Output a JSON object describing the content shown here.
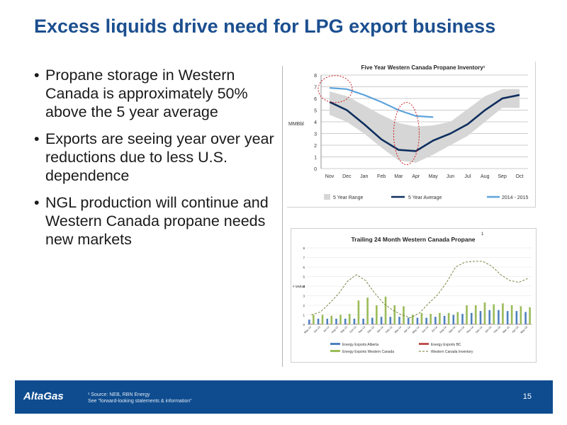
{
  "slide": {
    "title": "Excess liquids drive need for LPG export business",
    "bullets": [
      "Propane storage in Western Canada is approximately 50% above the 5 year average",
      "Exports are seeing year over year reductions due to less U.S. dependence",
      "NGL production will continue and Western Canada propane needs new markets"
    ],
    "footer": {
      "logo": "AltaGas",
      "source": "¹ Source: NEB, RBN Energy",
      "disclaimer": "See \"forward-looking statements & information\"",
      "page": "15"
    },
    "colors": {
      "title": "#1b4f8f",
      "footer": "#0e4c8f"
    }
  },
  "chart_data": [
    {
      "type": "area",
      "title": "Five Year Western Canada Propane Inventory¹",
      "ylabel": "MMBbl",
      "ylim": [
        0,
        8
      ],
      "yticks": [
        "0",
        "1",
        "2",
        "3",
        "4",
        "5",
        "6",
        "7",
        "8"
      ],
      "categories": [
        "Nov",
        "Dec",
        "Jan",
        "Feb",
        "Mar",
        "Apr",
        "May",
        "Jun",
        "Jul",
        "Aug",
        "Sep",
        "Oct"
      ],
      "range_low": [
        4.6,
        4.0,
        3.0,
        1.8,
        0.7,
        0.5,
        1.2,
        2.0,
        2.8,
        4.0,
        5.2,
        5.2
      ],
      "range_high": [
        6.6,
        6.2,
        5.4,
        4.6,
        3.9,
        3.6,
        3.7,
        4.0,
        5.1,
        6.2,
        6.8,
        6.8
      ],
      "series": [
        {
          "name": "5 Year Average",
          "color": "#0e2f5e",
          "values": [
            5.7,
            5.0,
            3.8,
            2.5,
            1.6,
            1.5,
            2.4,
            3.0,
            3.8,
            5.0,
            6.0,
            6.3
          ]
        },
        {
          "name": "2014 - 2015",
          "color": "#5da4dc",
          "values": [
            6.9,
            6.8,
            6.3,
            5.7,
            5.0,
            4.5,
            4.4,
            null,
            null,
            null,
            null,
            null
          ]
        }
      ],
      "legend": [
        "5 Year Range",
        "5 Year Average",
        "2014 - 2015"
      ],
      "legend_position": "bottom",
      "range_color": "#d6d6d6",
      "grid": true
    },
    {
      "type": "bar",
      "title": "Trailing 24 Month Western Canada Propane",
      "title_note": "1",
      "ylabel": "# MMbbl",
      "ylim": [
        0,
        8
      ],
      "yticks": [
        "0",
        "1",
        "2",
        "3",
        "4",
        "5",
        "6",
        "7",
        "8"
      ],
      "categories": [
        "May-13",
        "Jun-13",
        "Jul-13",
        "Aug-13",
        "Sep-13",
        "Oct-13",
        "Nov-13",
        "Dec-13",
        "Jan-14",
        "Feb-14",
        "Mar-14",
        "Apr-14",
        "May-14",
        "Jun-14",
        "Jul-14",
        "Aug-14",
        "Sep-14",
        "Oct-14",
        "Nov-14",
        "Dec-14",
        "Jan-15",
        "Feb-15",
        "Mar-15",
        "Apr-15",
        "May-15"
      ],
      "series": [
        {
          "name": "Energy Exports Alberta",
          "kind": "bar",
          "color": "#4f81bd",
          "values": [
            0.5,
            0.6,
            0.6,
            0.6,
            0.6,
            0.6,
            0.6,
            0.7,
            0.8,
            0.8,
            0.8,
            0.7,
            0.7,
            0.7,
            0.8,
            0.9,
            1.0,
            1.1,
            1.2,
            1.4,
            1.5,
            1.5,
            1.4,
            1.4,
            1.3
          ]
        },
        {
          "name": "Energy Exports BC",
          "kind": "bar",
          "color": "#c0504d",
          "values": [
            0.05,
            0.05,
            0.05,
            0.05,
            0.05,
            0.05,
            0.05,
            0.05,
            0.05,
            0.05,
            0.05,
            0.05,
            0.05,
            0.05,
            0.05,
            0.05,
            0.05,
            0.05,
            0.05,
            0.05,
            0.05,
            0.05,
            0.05,
            0.05,
            0.05
          ]
        },
        {
          "name": "Energy Exports Western Canada",
          "kind": "bar",
          "color": "#9bbb59",
          "values": [
            1.0,
            1.0,
            0.9,
            1.0,
            1.1,
            2.5,
            2.8,
            2.0,
            2.9,
            2.0,
            1.9,
            1.0,
            1.2,
            1.1,
            1.2,
            1.2,
            1.3,
            2.0,
            2.0,
            2.3,
            2.1,
            2.2,
            2.0,
            1.9,
            1.8
          ]
        },
        {
          "name": "Western Canada Inventory",
          "kind": "line",
          "color": "#6b7a30",
          "values": [
            1.0,
            1.3,
            2.2,
            3.2,
            4.5,
            5.2,
            4.6,
            3.3,
            2.2,
            1.5,
            1.0,
            0.7,
            1.2,
            2.2,
            3.1,
            4.4,
            6.0,
            6.5,
            6.6,
            6.6,
            6.1,
            5.2,
            4.6,
            4.4,
            4.8
          ]
        }
      ],
      "legend": [
        "Energy Exports Alberta",
        "Energy Exports BC",
        "Energy Exports Western Canada",
        "Western Canada Inventory"
      ],
      "legend_position": "bottom",
      "grid": true
    }
  ]
}
